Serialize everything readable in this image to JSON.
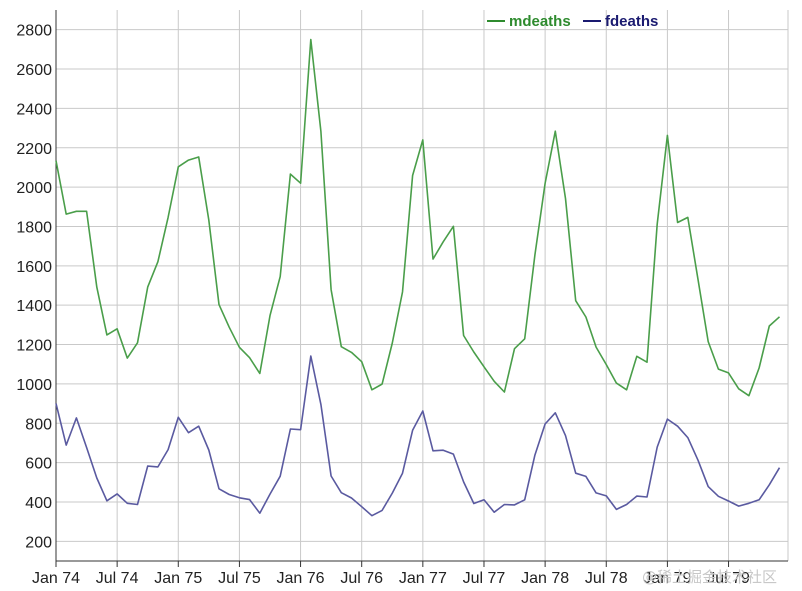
{
  "chart_data": {
    "type": "line",
    "title": "",
    "xlabel": "",
    "ylabel": "",
    "ylim": [
      100,
      2900
    ],
    "yticks": [
      200,
      400,
      600,
      800,
      1000,
      1200,
      1400,
      1600,
      1800,
      2000,
      2200,
      2400,
      2600,
      2800
    ],
    "xticks": [
      "Jan 74",
      "Jul 74",
      "Jan 75",
      "Jul 75",
      "Jan 76",
      "Jul 76",
      "Jan 77",
      "Jul 77",
      "Jan 78",
      "Jul 78",
      "Jan 79",
      "Jul 79"
    ],
    "grid": true,
    "legend_position": "top-right",
    "x_start": "1974-01",
    "x_frequency": "monthly",
    "series": [
      {
        "name": "mdeaths",
        "color": "#4a9e4a",
        "legend_color": "#2e8b2e",
        "values": [
          2134,
          1863,
          1877,
          1877,
          1492,
          1249,
          1280,
          1131,
          1209,
          1492,
          1621,
          1846,
          2103,
          2137,
          2153,
          1833,
          1403,
          1288,
          1186,
          1133,
          1053,
          1347,
          1545,
          2066,
          2020,
          2750,
          2283,
          1479,
          1189,
          1160,
          1113,
          970,
          999,
          1208,
          1467,
          2059,
          2240,
          1634,
          1722,
          1801,
          1246,
          1162,
          1087,
          1013,
          959,
          1179,
          1229,
          1655,
          2019,
          2284,
          1942,
          1423,
          1340,
          1187,
          1098,
          1004,
          970,
          1140,
          1110,
          1812,
          2263,
          1820,
          1846,
          1531,
          1215,
          1075,
          1056,
          975,
          940,
          1081,
          1294,
          1341
        ]
      },
      {
        "name": "fdeaths",
        "color": "#5a5aa0",
        "legend_color": "#1a1a70",
        "values": [
          901,
          689,
          827,
          677,
          522,
          406,
          441,
          393,
          387,
          582,
          578,
          666,
          830,
          752,
          785,
          664,
          467,
          438,
          421,
          412,
          343,
          440,
          531,
          771,
          767,
          1141,
          896,
          532,
          447,
          420,
          376,
          330,
          357,
          445,
          546,
          764,
          862,
          660,
          663,
          643,
          502,
          392,
          411,
          348,
          387,
          385,
          411,
          638,
          796,
          853,
          737,
          546,
          530,
          446,
          431,
          362,
          387,
          430,
          425,
          679,
          821,
          785,
          727,
          612,
          478,
          429,
          405,
          379,
          393,
          411,
          487,
          574
        ]
      }
    ]
  },
  "watermark": "@稀土掘金技术社区"
}
